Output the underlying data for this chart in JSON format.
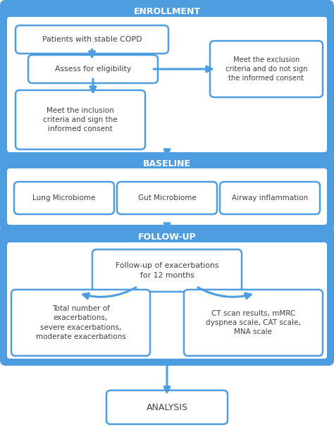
{
  "bg_color": "#ffffff",
  "section_blue": "#4d9de0",
  "section_border": "#4d9de0",
  "section_inner_bg": "#ffffff",
  "box_border": "#4d9de0",
  "box_bg": "#ffffff",
  "text_dark": "#404040",
  "text_white": "#ffffff",
  "arrow_color": "#4d9de0",
  "enrollment_label": "ENROLLMENT",
  "baseline_label": "BASELINE",
  "followup_label": "FOLLOW-UP",
  "analysis_label": "ANALYSIS",
  "box1_text": "Patients with stable COPD",
  "box2_text": "Assess for eligibility",
  "box3_text": "Meet the inclusion\ncriteria and sign the\ninformed consent",
  "box4_text": "Meet the exclusion\ncriteria and do not sign\nthe informed consent",
  "baseline_items": [
    "Lung Microbiome",
    "Gut Microbiome",
    "Airway inflammation"
  ],
  "followup_center_text": "Follow-up of exacerbations\nfor 12 months",
  "followup_left_text": "Total number of\nexacerbations,\nsevere exacerbations,\nmoderate exacerbations",
  "followup_right_text": "CT scan results, mMRC\ndyspnea scale, CAT scale,\nMNA scale"
}
